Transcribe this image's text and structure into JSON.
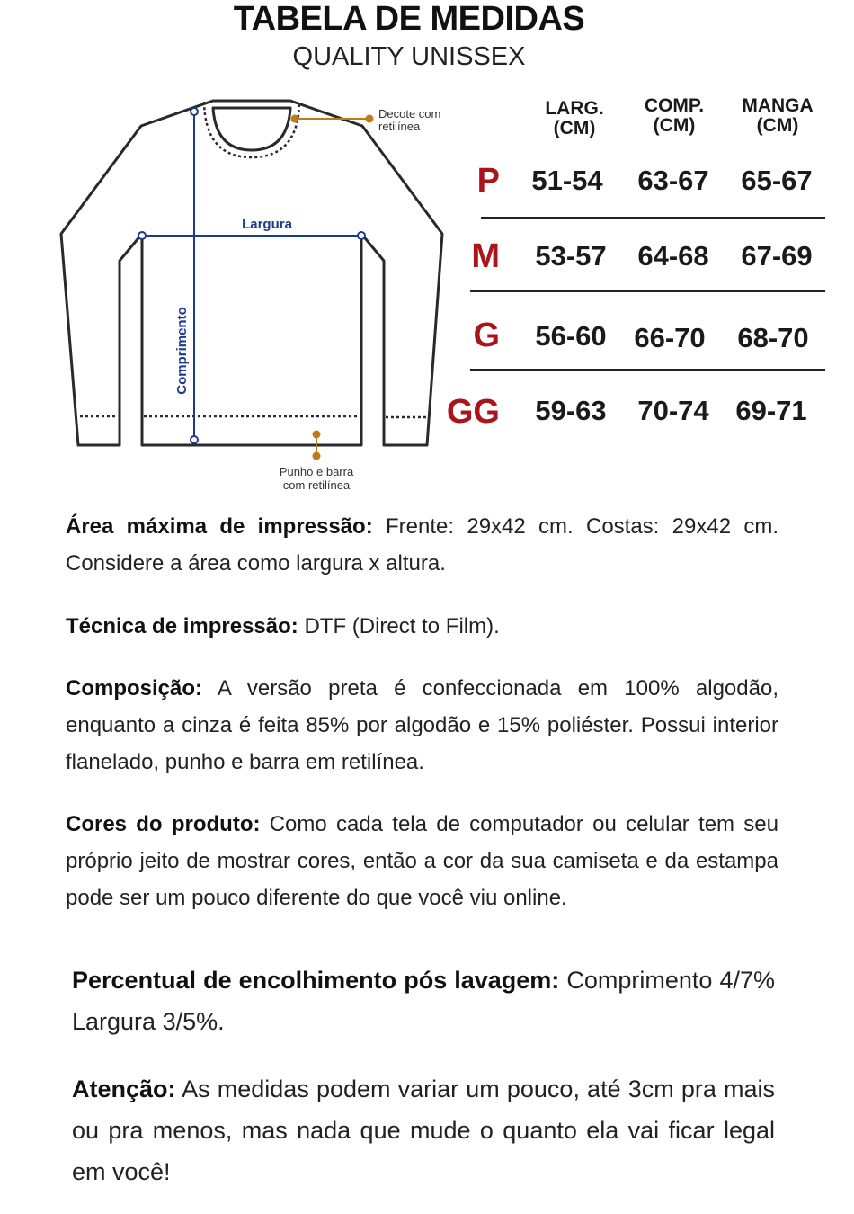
{
  "header": {
    "title": "TABELA DE MEDIDAS",
    "subtitle": "QUALITY UNISSEX"
  },
  "diagram": {
    "label_width": "Largura",
    "label_length": "Comprimento",
    "label_neck": [
      "Decote com",
      "retilínea"
    ],
    "label_cuff": [
      "Punho e barra",
      "com retilínea"
    ],
    "colors": {
      "outline": "#2a2a2a",
      "measure": "#1a3a8c",
      "callout": "#c07a1a"
    }
  },
  "size_table": {
    "columns": [
      {
        "line1": "LARG.",
        "line2": "(CM)"
      },
      {
        "line1": "COMP.",
        "line2": "(CM)"
      },
      {
        "line1": "MANGA",
        "line2": "(CM)"
      }
    ],
    "rows": [
      {
        "size": "P",
        "values": [
          "51-54",
          "63-67",
          "65-67"
        ]
      },
      {
        "size": "M",
        "values": [
          "53-57",
          "64-68",
          "67-69"
        ]
      },
      {
        "size": "G",
        "values": [
          "56-60",
          "66-70",
          "68-70"
        ]
      },
      {
        "size": "GG",
        "values": [
          "59-63",
          "70-74",
          "69-71"
        ]
      }
    ],
    "size_color": "#a8151b"
  },
  "info": [
    {
      "label": "Área máxima de impressão:",
      "text": " Frente: 29x42 cm. Costas: 29x42 cm. Considere a área como largura x altura."
    },
    {
      "label": "Técnica de impressão:",
      "text": " DTF (Direct to Film)."
    },
    {
      "label": "Composição:",
      "text": " A versão preta é confeccionada em 100% algodão, enquanto a cinza é feita 85% por algodão e 15% poliéster. Possui interior flanelado, punho e barra em retilínea."
    },
    {
      "label": "Cores do produto:",
      "text": " Como cada tela de computador ou celular tem seu próprio jeito de mostrar cores, então a cor da sua camiseta e da estampa pode ser um pouco diferente do que você viu online."
    },
    {
      "label": "Percentual de encolhimento pós lavagem:",
      "text": " Comprimento 4/7% Largura 3/5%."
    },
    {
      "label": "Atenção:",
      "text": " As medidas podem variar um pouco, até 3cm pra mais ou pra menos, mas nada que mude o quanto ela vai ficar legal em você!"
    }
  ]
}
